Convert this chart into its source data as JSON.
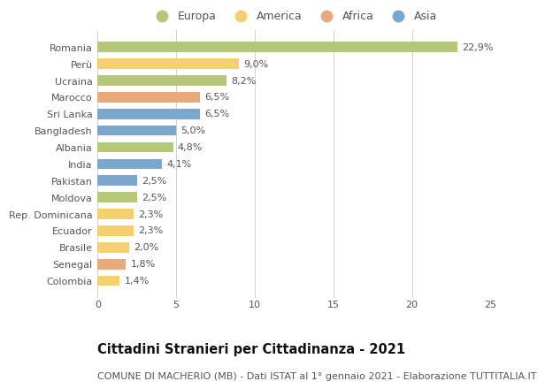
{
  "countries": [
    "Romania",
    "Perù",
    "Ucraina",
    "Marocco",
    "Sri Lanka",
    "Bangladesh",
    "Albania",
    "India",
    "Pakistan",
    "Moldova",
    "Rep. Dominicana",
    "Ecuador",
    "Brasile",
    "Senegal",
    "Colombia"
  ],
  "values": [
    22.9,
    9.0,
    8.2,
    6.5,
    6.5,
    5.0,
    4.8,
    4.1,
    2.5,
    2.5,
    2.3,
    2.3,
    2.0,
    1.8,
    1.4
  ],
  "labels": [
    "22,9%",
    "9,0%",
    "8,2%",
    "6,5%",
    "6,5%",
    "5,0%",
    "4,8%",
    "4,1%",
    "2,5%",
    "2,5%",
    "2,3%",
    "2,3%",
    "2,0%",
    "1,8%",
    "1,4%"
  ],
  "continents": [
    "Europa",
    "America",
    "Europa",
    "Africa",
    "Asia",
    "Asia",
    "Europa",
    "Asia",
    "Asia",
    "Europa",
    "America",
    "America",
    "America",
    "Africa",
    "America"
  ],
  "continent_colors": {
    "Europa": "#b5c87a",
    "America": "#f5d06e",
    "Africa": "#e8aa7a",
    "Asia": "#7ca7cc"
  },
  "legend_order": [
    "Europa",
    "America",
    "Africa",
    "Asia"
  ],
  "title": "Cittadini Stranieri per Cittadinanza - 2021",
  "subtitle": "COMUNE DI MACHERIO (MB) - Dati ISTAT al 1° gennaio 2021 - Elaborazione TUTTITALIA.IT",
  "xlim": [
    0,
    25
  ],
  "xticks": [
    0,
    5,
    10,
    15,
    20,
    25
  ],
  "background_color": "#ffffff",
  "grid_color": "#d0d0d0",
  "bar_height": 0.62,
  "label_fontsize": 8.0,
  "tick_fontsize": 8.0,
  "title_fontsize": 10.5,
  "subtitle_fontsize": 8.0,
  "legend_fontsize": 9.0
}
